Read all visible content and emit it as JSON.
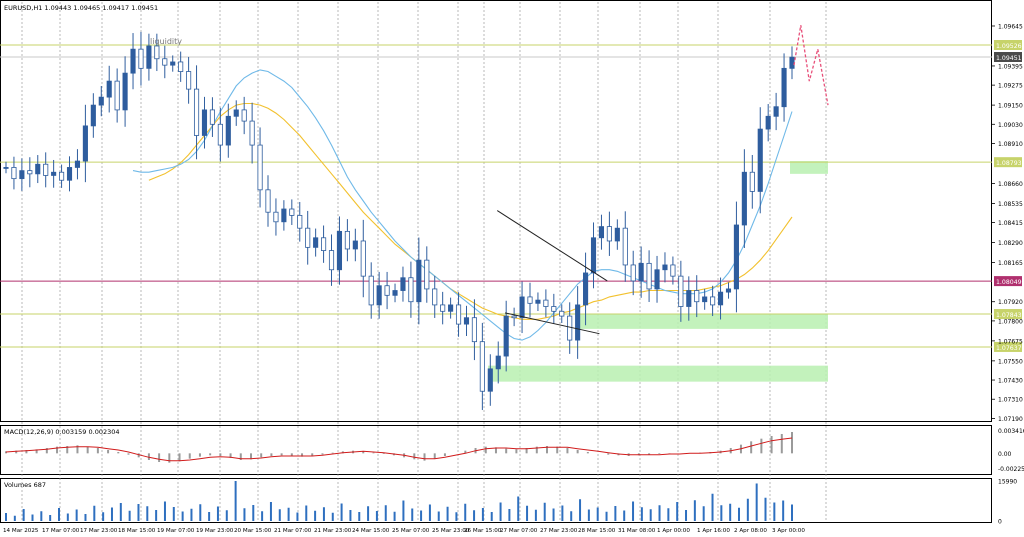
{
  "header": {
    "symbol_info": "EURUSD,H1  1.09443 1.09465 1.09417 1.09451"
  },
  "colors": {
    "candle_up": "#2e5d9e",
    "candle_down": "#2e5d9e",
    "ma_fast": "#6fb9e8",
    "ma_slow": "#f2c12e",
    "level_yellow": "#c7d36a",
    "level_magenta": "#b0306e",
    "zone": "#b9f0b0",
    "projection": "#e8507a",
    "macd_hist": "#9a9a9a",
    "macd_signal": "#d11b1b",
    "volume": "#2e6fbf",
    "grid": "#8c8c8c"
  },
  "chart_data": [
    {
      "type": "candlestick",
      "timeframe": "H1",
      "annotations": [
        {
          "text": "liquidity",
          "price": 1.0952
        }
      ],
      "y_axis": {
        "ylim": [
          1.0718,
          1.0972
        ],
        "ticks": [
          "1.09645",
          "1.09395",
          "1.09275",
          "1.09150",
          "1.09030",
          "1.08910",
          "1.08660",
          "1.08535",
          "1.08415",
          "1.08290",
          "1.08165",
          "1.07920",
          "1.07800",
          "1.07675",
          "1.07550",
          "1.07430",
          "1.07310",
          "1.07190"
        ]
      },
      "x_axis": {
        "labels": [
          "14 Mar 2025",
          "17 Mar 07:00",
          "17 Mar 23:00",
          "18 Mar 15:00",
          "19 Mar 07:00",
          "19 Mar 23:00",
          "20 Mar 15:00",
          "21 Mar 07:00",
          "21 Mar 23:00",
          "24 Mar 15:00",
          "25 Mar 07:00",
          "25 Mar 23:00",
          "26 Mar 15:00",
          "27 Mar 07:00",
          "27 Mar 23:00",
          "28 Mar 15:00",
          "31 Mar 08:00",
          "1 Apr 00:00",
          "1 Apr 16:00",
          "2 Apr 08:00",
          "3 Apr 00:00"
        ]
      },
      "price_levels": [
        {
          "price": 1.09526,
          "label": "1.09526",
          "style": "yellow"
        },
        {
          "price": 1.09451,
          "label": "1.09451",
          "style": "current"
        },
        {
          "price": 1.08793,
          "label": "1.08793",
          "style": "yellow"
        },
        {
          "price": 1.08049,
          "label": "1.08049",
          "style": "magenta"
        },
        {
          "price": 1.07843,
          "label": "1.07843",
          "style": "yellow"
        },
        {
          "price": 1.07637,
          "label": "1.07637",
          "style": "yellow"
        }
      ],
      "zones": [
        {
          "from_x": 0.58,
          "to_x": 1.0,
          "low": 1.0775,
          "high": 1.0784
        },
        {
          "from_x": 0.5,
          "to_x": 1.0,
          "low": 1.0742,
          "high": 1.0752
        },
        {
          "from_x": 0.91,
          "to_x": 1.0,
          "low": 1.0872,
          "high": 1.088
        }
      ],
      "trendlines": [
        {
          "x1": 0.625,
          "y1": 1.0849,
          "x2": 0.765,
          "y2": 1.0805
        },
        {
          "x1": 0.635,
          "y1": 1.0785,
          "x2": 0.755,
          "y2": 1.0772
        }
      ],
      "projection": [
        [
          0.0,
          1.094
        ],
        [
          0.2,
          1.0965
        ],
        [
          0.45,
          1.093
        ],
        [
          0.7,
          1.095
        ],
        [
          1.0,
          1.0915
        ]
      ],
      "series": [
        {
          "name": "price",
          "values": [
            1.0876,
            1.0869,
            1.0874,
            1.0872,
            1.0878,
            1.0871,
            1.0873,
            1.0868,
            1.0876,
            1.088,
            1.0902,
            1.0915,
            1.092,
            1.093,
            1.0912,
            1.0935,
            1.095,
            1.0938,
            1.0952,
            1.0944,
            1.094,
            1.0942,
            1.0936,
            1.0925,
            1.0896,
            1.0912,
            1.0903,
            1.089,
            1.0908,
            1.0912,
            1.0905,
            1.089,
            1.0862,
            1.0848,
            1.0842,
            1.085,
            1.0846,
            1.0838,
            1.0826,
            1.0832,
            1.0824,
            1.0812,
            1.0836,
            1.0825,
            1.083,
            1.0808,
            1.079,
            1.0802,
            1.0796,
            1.0799,
            1.0807,
            1.0792,
            1.0818,
            1.08,
            1.079,
            1.0786,
            1.079,
            1.0778,
            1.0782,
            1.0767,
            1.0736,
            1.075,
            1.0758,
            1.0783,
            1.0782,
            1.0795,
            1.0791,
            1.0793,
            1.0789,
            1.0786,
            1.0783,
            1.0768,
            1.079,
            1.081,
            1.0832,
            1.0839,
            1.083,
            1.0838,
            1.0815,
            1.0805,
            1.0816,
            1.08,
            1.0812,
            1.0815,
            1.0808,
            1.0789,
            1.0799,
            1.0792,
            1.0795,
            1.079,
            1.0798,
            1.08,
            1.084,
            1.0873,
            1.0861,
            1.09,
            1.0908,
            1.0914,
            1.0938,
            1.0945
          ]
        },
        {
          "name": "ma_fast",
          "values": [
            1.0874,
            1.0873,
            1.0873,
            1.0874,
            1.0875,
            1.0876,
            1.0878,
            1.0881,
            1.0886,
            1.0893,
            1.0902,
            1.0911,
            1.0919,
            1.0927,
            1.0932,
            1.0935,
            1.0937,
            1.0936,
            1.0933,
            1.093,
            1.0926,
            1.092,
            1.0914,
            1.0907,
            1.0899,
            1.089,
            1.088,
            1.087,
            1.0862,
            1.0855,
            1.0848,
            1.0842,
            1.0836,
            1.083,
            1.0825,
            1.082,
            1.0816,
            1.0812,
            1.0808,
            1.0804,
            1.08,
            1.0796,
            1.0792,
            1.0788,
            1.0784,
            1.078,
            1.0776,
            1.0772,
            1.0769,
            1.0768,
            1.077,
            1.0774,
            1.0779,
            1.0785,
            1.0791,
            1.0797,
            1.0803,
            1.0807,
            1.0811,
            1.0812,
            1.0812,
            1.0811,
            1.0809,
            1.0807,
            1.0805,
            1.0803,
            1.0801,
            1.0799,
            1.0798,
            1.0797,
            1.0797,
            1.0797,
            1.0798,
            1.08,
            1.0804,
            1.081,
            1.0818,
            1.0828,
            1.084,
            1.0852,
            1.0866,
            1.0881,
            1.0896,
            1.0911
          ]
        },
        {
          "name": "ma_slow",
          "values": [
            1.0868,
            1.087,
            1.0872,
            1.0875,
            1.0879,
            1.0884,
            1.089,
            1.0896,
            1.0902,
            1.0908,
            1.0912,
            1.0915,
            1.0916,
            1.0916,
            1.0915,
            1.0913,
            1.091,
            1.0906,
            1.0901,
            1.0896,
            1.089,
            1.0884,
            1.0878,
            1.0872,
            1.0866,
            1.086,
            1.0854,
            1.0848,
            1.0843,
            1.0838,
            1.0833,
            1.0828,
            1.0824,
            1.082,
            1.0816,
            1.0812,
            1.0808,
            1.0804,
            1.08,
            1.0797,
            1.0794,
            1.0791,
            1.0788,
            1.0786,
            1.0784,
            1.0783,
            1.0782,
            1.0781,
            1.0781,
            1.0781,
            1.0782,
            1.0783,
            1.0785,
            1.0786,
            1.0788,
            1.079,
            1.0792,
            1.0793,
            1.0795,
            1.0796,
            1.0797,
            1.0798,
            1.0798,
            1.0799,
            1.0799,
            1.0799,
            1.0799,
            1.0799,
            1.0799,
            1.0799,
            1.08,
            1.0801,
            1.0802,
            1.0804,
            1.0806,
            1.0809,
            1.0813,
            1.0818,
            1.0824,
            1.0831,
            1.0838,
            1.0845
          ]
        }
      ]
    },
    {
      "type": "bar",
      "title": "MACD(12,26,9) 0.003159 0.002304",
      "y_axis": {
        "ylim": [
          -0.0028,
          0.0038
        ],
        "ticks": [
          "0.003416",
          "0.00",
          "-0.002254"
        ]
      },
      "series": [
        {
          "name": "histogram",
          "values": [
            0.0003,
            0.0004,
            0.0005,
            0.0006,
            0.0008,
            0.001,
            0.0011,
            0.0012,
            0.001,
            0.0008,
            0.0005,
            0.0002,
            -0.0002,
            -0.0006,
            -0.001,
            -0.0013,
            -0.0014,
            -0.0012,
            -0.0008,
            -0.0005,
            -0.0003,
            -0.0004,
            -0.0007,
            -0.001,
            -0.0009,
            -0.0006,
            -0.0004,
            -0.0003,
            -0.0004,
            -0.0005,
            -0.0004,
            -0.0002,
            0.0001,
            0.0003,
            0.0004,
            0.0003,
            0.0001,
            -0.0001,
            -0.0003,
            -0.0006,
            -0.0009,
            -0.0011,
            -0.0008,
            -0.0004,
            0.0,
            0.0004,
            0.0008,
            0.001,
            0.0009,
            0.0007,
            0.0006,
            0.0008,
            0.001,
            0.0011,
            0.001,
            0.0008,
            0.0005,
            0.0002,
            0.0,
            -0.0002,
            -0.0003,
            -0.0004,
            -0.0003,
            -0.0002,
            -0.0001,
            -0.0001,
            0.0,
            0.0,
            0.0001,
            0.0002,
            0.0004,
            0.0008,
            0.0013,
            0.0018,
            0.0022,
            0.0026,
            0.0029,
            0.0032
          ]
        },
        {
          "name": "signal",
          "values": [
            0.0002,
            0.0003,
            0.0004,
            0.0005,
            0.0006,
            0.0008,
            0.0009,
            0.001,
            0.001,
            0.0009,
            0.0007,
            0.0005,
            0.0002,
            -0.0002,
            -0.0006,
            -0.0009,
            -0.0011,
            -0.0011,
            -0.001,
            -0.0008,
            -0.0006,
            -0.0005,
            -0.0006,
            -0.0008,
            -0.0008,
            -0.0007,
            -0.0005,
            -0.0004,
            -0.0004,
            -0.0004,
            -0.0004,
            -0.0003,
            -0.0001,
            0.0001,
            0.0002,
            0.0003,
            0.0002,
            0.0001,
            -0.0001,
            -0.0003,
            -0.0006,
            -0.0008,
            -0.0008,
            -0.0006,
            -0.0003,
            0.0,
            0.0004,
            0.0007,
            0.0008,
            0.0008,
            0.0007,
            0.0007,
            0.0008,
            0.0009,
            0.0009,
            0.0009,
            0.0007,
            0.0005,
            0.0003,
            0.0001,
            -0.0001,
            -0.0002,
            -0.0002,
            -0.0002,
            -0.0002,
            -0.0001,
            -0.0001,
            0.0,
            0.0,
            0.0001,
            0.0002,
            0.0004,
            0.0007,
            0.0011,
            0.0015,
            0.0019,
            0.0021,
            0.0023
          ]
        }
      ]
    },
    {
      "type": "bar",
      "title": "Volumes 687",
      "y_axis": {
        "ylim": [
          0,
          15990
        ],
        "ticks": [
          "15990",
          "0"
        ]
      },
      "series": [
        {
          "name": "volume",
          "values": [
            3200,
            2100,
            4800,
            2600,
            3900,
            2400,
            5200,
            3000,
            4600,
            2800,
            6100,
            3500,
            5400,
            7200,
            4100,
            6800,
            5900,
            4400,
            7800,
            5600,
            3800,
            4900,
            6700,
            3600,
            5800,
            4300,
            15990,
            5100,
            6400,
            3900,
            7600,
            4700,
            5300,
            3400,
            6200,
            4100,
            5500,
            3300,
            7000,
            4400,
            3600,
            5900,
            4000,
            6300,
            3700,
            8200,
            5000,
            4200,
            6600,
            3800,
            5700,
            3500,
            6900,
            4300,
            5200,
            3600,
            7400,
            4800,
            9800,
            6100,
            4500,
            7300,
            5000,
            6200,
            3900,
            8700,
            4600,
            5400,
            3700,
            6000,
            4200,
            7800,
            5500,
            4700,
            6300,
            5100,
            7600,
            4400,
            8300,
            5900,
            10900,
            6300,
            6900,
            5300,
            8900,
            15000,
            9300,
            7400,
            8200,
            6600
          ]
        }
      ]
    }
  ]
}
